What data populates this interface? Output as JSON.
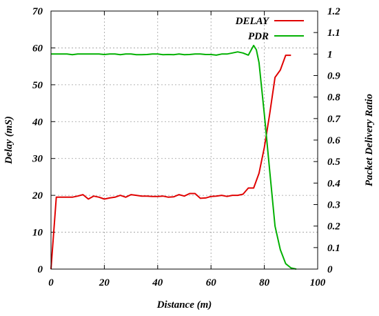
{
  "chart_data": {
    "type": "line",
    "title": "",
    "xlabel": "Distance (m)",
    "ylabel": "Delay (mS)",
    "y2label": "Packet Delivery Ratio",
    "xlim": [
      0,
      100
    ],
    "ylim": [
      0,
      70
    ],
    "y2lim": [
      0,
      1.2
    ],
    "x_ticks": [
      "0",
      "20",
      "40",
      "60",
      "80",
      "100"
    ],
    "y_ticks": [
      "0",
      "10",
      "20",
      "30",
      "40",
      "50",
      "60",
      "70"
    ],
    "y2_ticks": [
      "0",
      "0.1",
      "0.2",
      "0.3",
      "0.4",
      "0.5",
      "0.6",
      "0.7",
      "0.8",
      "0.9",
      "1",
      "1.1",
      "1.2"
    ],
    "grid": true,
    "legend_position": "top-right",
    "series": [
      {
        "name": "DELAY",
        "axis": "left",
        "color": "#e00000",
        "x": [
          0,
          2,
          4,
          6,
          8,
          10,
          12,
          14,
          16,
          18,
          20,
          22,
          24,
          26,
          28,
          30,
          32,
          34,
          36,
          38,
          40,
          42,
          44,
          46,
          48,
          50,
          52,
          54,
          56,
          58,
          60,
          62,
          64,
          66,
          68,
          70,
          72,
          74,
          76,
          78,
          80,
          82,
          84,
          86,
          88,
          90
        ],
        "y": [
          0,
          19.5,
          19.5,
          19.5,
          19.5,
          19.8,
          20.2,
          19,
          19.8,
          19.5,
          19,
          19.3,
          19.5,
          20,
          19.5,
          20.2,
          20,
          19.8,
          19.8,
          19.7,
          19.7,
          19.8,
          19.5,
          19.6,
          20.2,
          19.8,
          20.5,
          20.5,
          19.2,
          19.3,
          19.7,
          19.8,
          20,
          19.7,
          20,
          20,
          20.3,
          22,
          22,
          26,
          33,
          42,
          52,
          54,
          58,
          58
        ]
      },
      {
        "name": "PDR",
        "axis": "right",
        "color": "#00b000",
        "x": [
          0,
          2,
          4,
          6,
          8,
          10,
          12,
          14,
          16,
          18,
          20,
          22,
          24,
          26,
          28,
          30,
          32,
          34,
          36,
          38,
          40,
          42,
          44,
          46,
          48,
          50,
          52,
          54,
          56,
          58,
          60,
          62,
          64,
          66,
          68,
          70,
          72,
          74,
          76,
          77,
          78,
          80,
          82,
          84,
          86,
          88,
          90,
          92
        ],
        "y": [
          1,
          1,
          1,
          1,
          0.997,
          1,
          1,
          1,
          1,
          1,
          0.998,
          1,
          1,
          0.997,
          1,
          1,
          0.997,
          0.997,
          0.998,
          1,
          1,
          0.997,
          0.998,
          0.997,
          1,
          0.997,
          0.998,
          1,
          1,
          0.998,
          0.998,
          0.995,
          1,
          1,
          1.005,
          1.01,
          1.005,
          0.995,
          1.04,
          1.02,
          0.96,
          0.72,
          0.46,
          0.2,
          0.09,
          0.025,
          0.005,
          0
        ]
      }
    ]
  }
}
